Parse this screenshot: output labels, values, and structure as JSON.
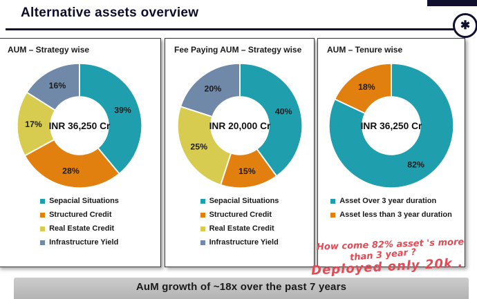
{
  "slide": {
    "title": "Alternative assets overview",
    "banner_text": "AuM growth of ~18x over the past 7 years"
  },
  "logo": {
    "roundel_glyph": "✱"
  },
  "colors": {
    "brand_navy": "#10102e",
    "teal": "#1f9fae",
    "orange": "#e2800f",
    "yellow": "#d7cc4f",
    "blue_gray": "#7189a8",
    "annotation_red": "#e14b55"
  },
  "annotation": {
    "line1": "How come 82% asset 's more",
    "line2": "than 3 year ?",
    "line3": "Deployed only 20k ."
  },
  "chart_data": [
    {
      "type": "pie",
      "variant": "donut",
      "title": "AUM – Strategy wise",
      "center_label": "INR 36,250 Cr",
      "categories": [
        "Sepacial Situations",
        "Structured Credit",
        "Real Estate Credit",
        "Infrastructure Yield"
      ],
      "values": [
        39,
        28,
        17,
        16
      ],
      "labels": [
        "39%",
        "28%",
        "17%",
        "16%"
      ],
      "colors": [
        "#1f9fae",
        "#e2800f",
        "#d7cc4f",
        "#7189a8"
      ],
      "start_angle_deg": 0,
      "legend_position": "bottom"
    },
    {
      "type": "pie",
      "variant": "donut",
      "title": "Fee Paying AUM – Strategy wise",
      "center_label": "INR 20,000 Cr",
      "categories": [
        "Sepacial Situations",
        "Structured Credit",
        "Real Estate Credit",
        "Infrastructure Yield"
      ],
      "values": [
        40,
        15,
        25,
        20
      ],
      "labels": [
        "40%",
        "15%",
        "25%",
        "20%"
      ],
      "colors": [
        "#1f9fae",
        "#e2800f",
        "#d7cc4f",
        "#7189a8"
      ],
      "start_angle_deg": 0,
      "legend_position": "bottom"
    },
    {
      "type": "pie",
      "variant": "donut",
      "title": "AUM – Tenure wise",
      "center_label": "INR 36,250 Cr",
      "categories": [
        "Asset Over 3 year duration",
        "Asset less than 3 year duration"
      ],
      "values": [
        82,
        18
      ],
      "labels": [
        "82%",
        "18%"
      ],
      "colors": [
        "#1f9fae",
        "#e2800f"
      ],
      "start_angle_deg": 0,
      "legend_position": "bottom"
    }
  ]
}
